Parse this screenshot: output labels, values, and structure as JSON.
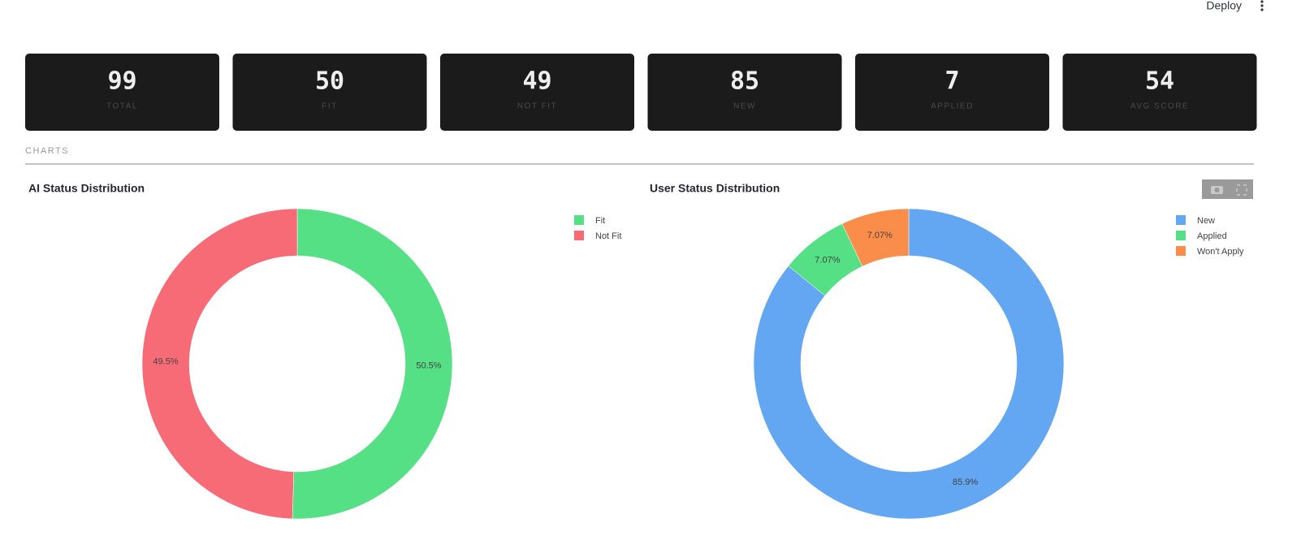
{
  "header": {
    "deploy": "Deploy"
  },
  "metrics": [
    {
      "value": "99",
      "label": "TOTAL"
    },
    {
      "value": "50",
      "label": "FIT"
    },
    {
      "value": "49",
      "label": "NOT FIT"
    },
    {
      "value": "85",
      "label": "NEW"
    },
    {
      "value": "7",
      "label": "APPLIED"
    },
    {
      "value": "54",
      "label": "AVG SCORE"
    }
  ],
  "section_label": "CHARTS",
  "chart_data": [
    {
      "type": "pie",
      "title": "AI Status Distribution",
      "categories": [
        "Fit",
        "Not Fit"
      ],
      "values": [
        50.5,
        49.5
      ],
      "value_labels": [
        "50.5%",
        "49.5%"
      ],
      "colors": [
        "#55e086",
        "#f76b77"
      ],
      "hole": true
    },
    {
      "type": "pie",
      "title": "User Status Distribution",
      "categories": [
        "New",
        "Applied",
        "Won't Apply"
      ],
      "values": [
        85.9,
        7.07,
        7.07
      ],
      "value_labels": [
        "85.9%",
        "7.07%",
        "7.07%"
      ],
      "colors": [
        "#63a6f2",
        "#55e086",
        "#fa8d4a"
      ],
      "hole": true
    }
  ]
}
